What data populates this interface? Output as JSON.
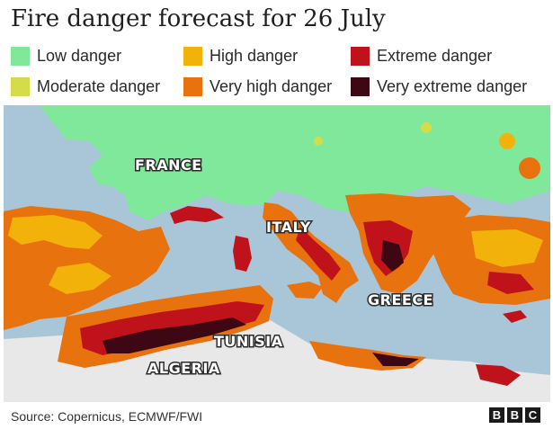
{
  "title": "Fire danger forecast for 26 July",
  "legend": [
    {
      "label": "Low danger",
      "color": "#7fe89b"
    },
    {
      "label": "Moderate danger",
      "color": "#d4dc4a"
    },
    {
      "label": "High danger",
      "color": "#f2b20a"
    },
    {
      "label": "Very high danger",
      "color": "#e8720e"
    },
    {
      "label": "Extreme danger",
      "color": "#c0121a"
    },
    {
      "label": "Very extreme danger",
      "color": "#3d0714"
    }
  ],
  "places": {
    "france": "FRANCE",
    "italy": "ITALY",
    "greece": "GREECE",
    "tunisia": "TUNISIA",
    "algeria": "ALGERIA"
  },
  "colors": {
    "sea": "#a9c6d8",
    "land_outside": "#e8e8e8"
  },
  "source": "Source: Copernicus, ECMWF/FWI",
  "logo": [
    "B",
    "B",
    "C"
  ]
}
